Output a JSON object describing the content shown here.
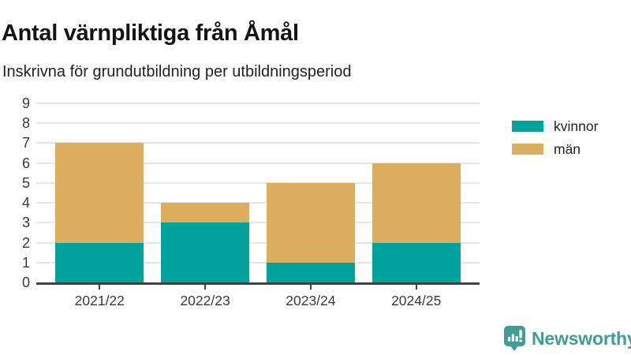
{
  "title": "Antal värnpliktiga från Åmål",
  "subtitle": "Inskrivna för grundutbildning per utbildningsperiod",
  "chart_data": {
    "type": "bar",
    "stacked": true,
    "title": "Antal värnpliktiga från Åmål",
    "subtitle": "Inskrivna för grundutbildning per utbildningsperiod",
    "categories": [
      "2021/22",
      "2022/23",
      "2023/24",
      "2024/25"
    ],
    "series": [
      {
        "name": "kvinnor",
        "color": "#00a39b",
        "values": [
          2,
          3,
          1,
          2
        ]
      },
      {
        "name": "män",
        "color": "#dcae5d",
        "values": [
          5,
          1,
          4,
          4
        ]
      }
    ],
    "totals": [
      7,
      4,
      5,
      6
    ],
    "xlabel": "",
    "ylabel": "",
    "ylim": [
      0,
      9
    ],
    "yticks": [
      0,
      1,
      2,
      3,
      4,
      5,
      6,
      7,
      8,
      9
    ],
    "grid": "horizontal",
    "legend_position": "right"
  },
  "legend": {
    "items": [
      {
        "label": "kvinnor",
        "color": "#00a39b"
      },
      {
        "label": "män",
        "color": "#dcae5d"
      }
    ]
  },
  "branding": {
    "name": "Newsworthy",
    "color": "#3f9d97",
    "icon": "bar-chart-speech-bubble-icon"
  },
  "colors": {
    "teal": "#00a39b",
    "gold": "#dcae5d",
    "gridline": "#e6e6e6",
    "axis": "#404040",
    "tick_text": "#3a3a3a",
    "title_text": "#141414"
  }
}
